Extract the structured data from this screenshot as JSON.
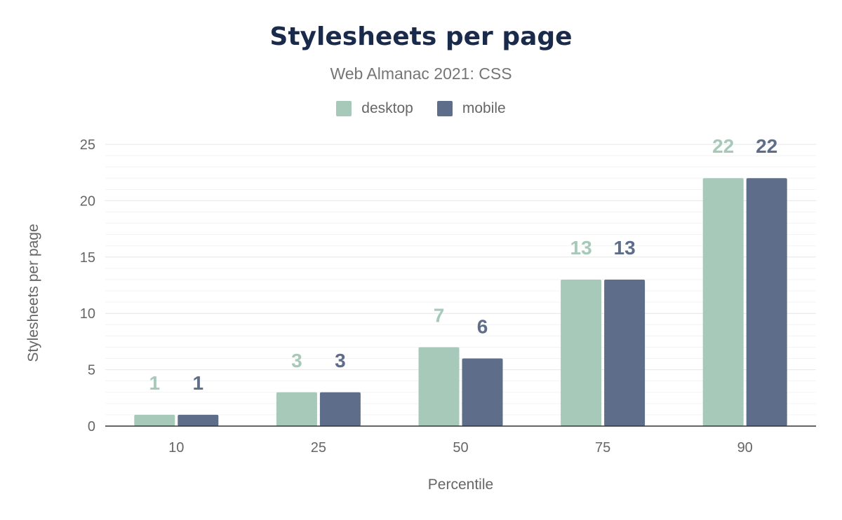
{
  "chart_data": {
    "type": "bar",
    "title": "Stylesheets per page",
    "subtitle": "Web Almanac 2021: CSS",
    "xlabel": "Percentile",
    "ylabel": "Stylesheets per page",
    "categories": [
      "10",
      "25",
      "50",
      "75",
      "90"
    ],
    "series": [
      {
        "name": "desktop",
        "values": [
          1,
          3,
          7,
          13,
          22
        ],
        "color": "#a7c9b9"
      },
      {
        "name": "mobile",
        "values": [
          1,
          3,
          6,
          13,
          22
        ],
        "color": "#5e6e8a"
      }
    ],
    "ylim": [
      0,
      25
    ],
    "yticks": [
      "0",
      "5",
      "10",
      "15",
      "20",
      "25"
    ],
    "grid": true,
    "legend_position": "top-center",
    "data_labels": true
  }
}
